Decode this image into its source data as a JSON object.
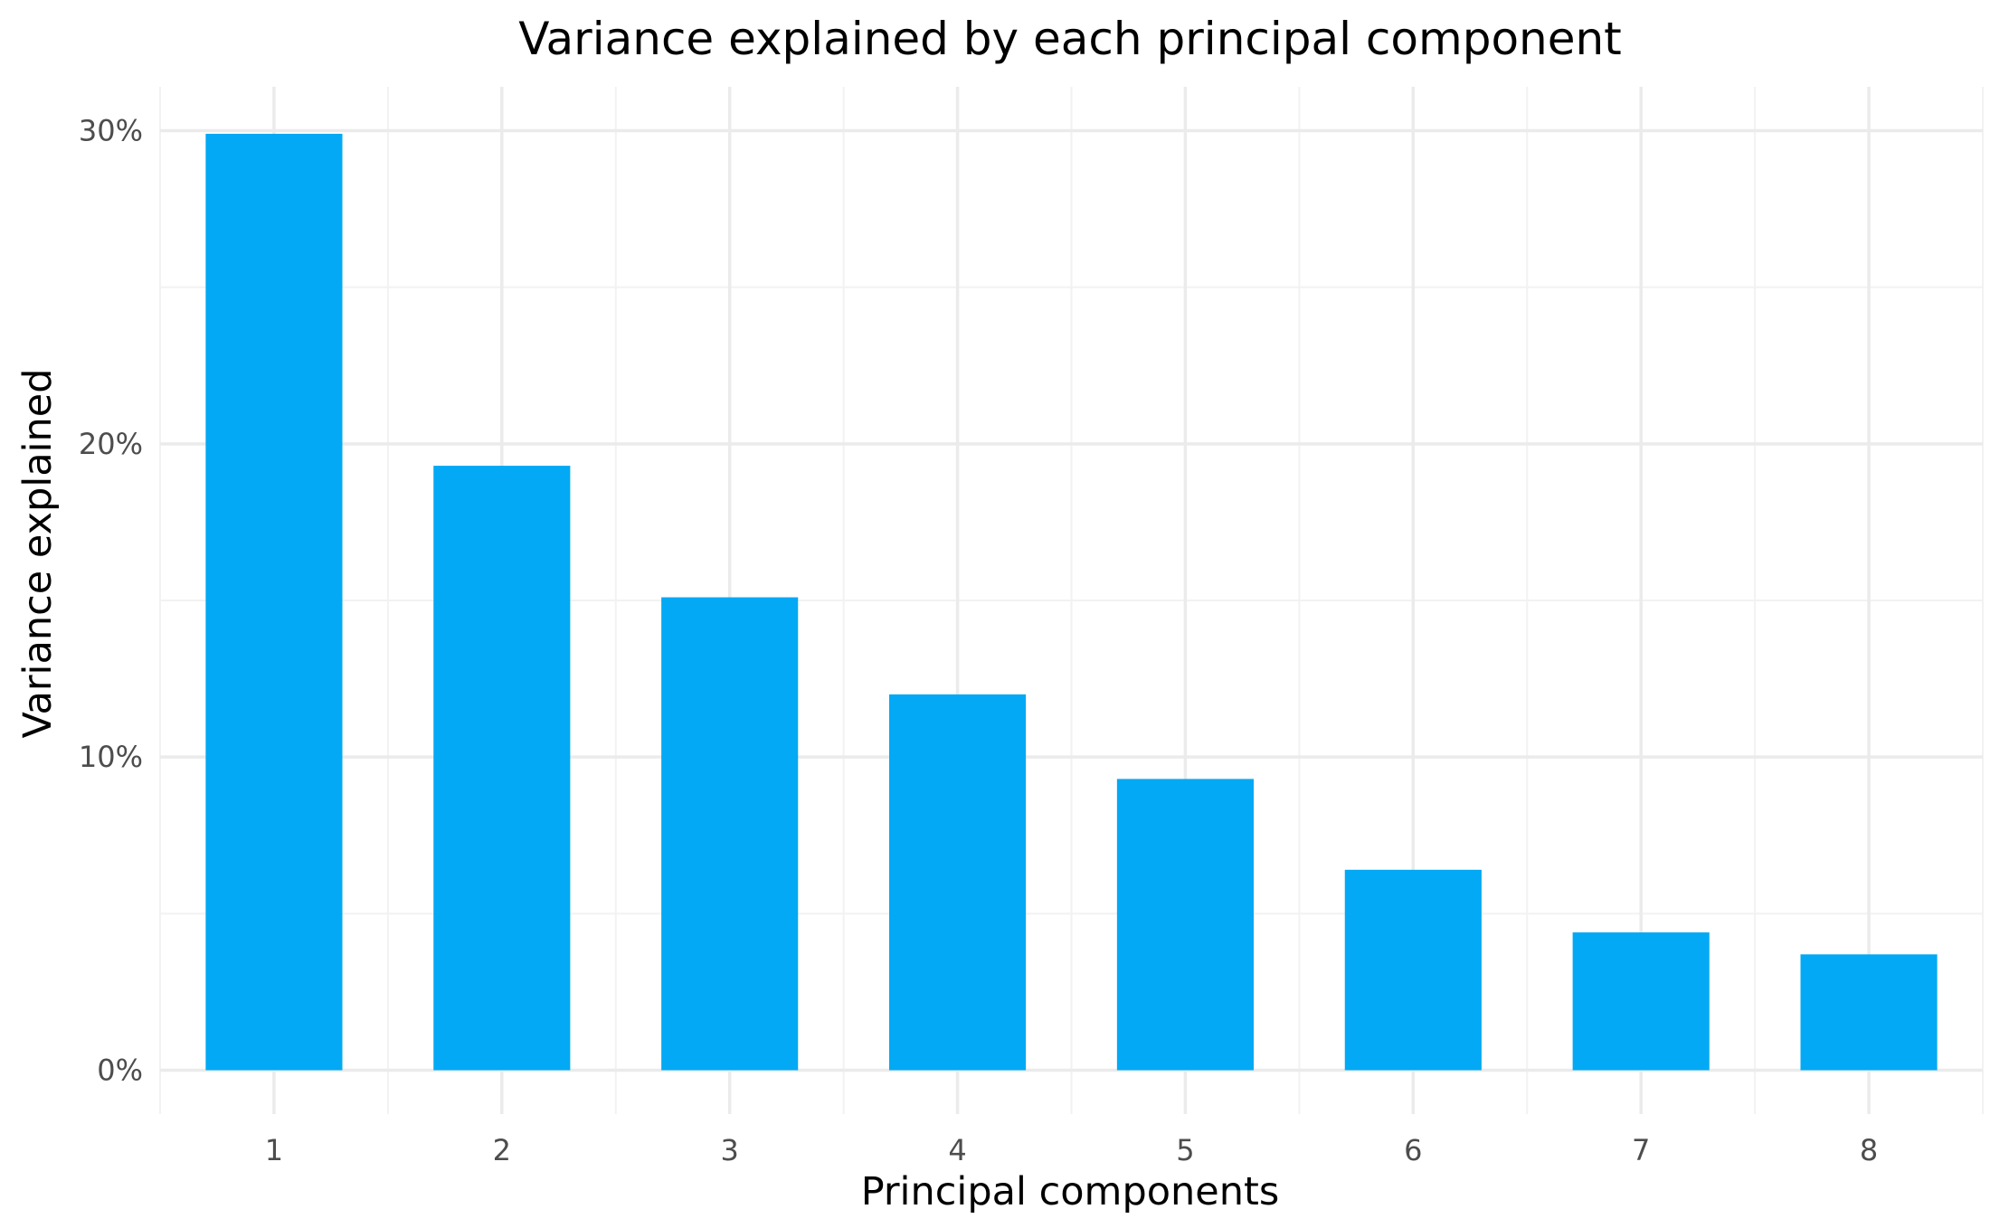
{
  "chart_data": {
    "type": "bar",
    "title": "Variance explained by each principal component",
    "xlabel": "Principal components",
    "ylabel": "Variance explained",
    "categories": [
      "1",
      "2",
      "3",
      "4",
      "5",
      "6",
      "7",
      "8"
    ],
    "values": [
      29.9,
      19.3,
      15.1,
      12.0,
      9.3,
      6.4,
      4.4,
      3.7
    ],
    "ylim": [
      -1.4,
      31.4
    ],
    "yticks": [
      0,
      10,
      20,
      30
    ],
    "ytick_labels": [
      "0%",
      "10%",
      "20%",
      "30%"
    ],
    "grid": true,
    "legend": "none",
    "bar_color": "#03A9F4"
  }
}
